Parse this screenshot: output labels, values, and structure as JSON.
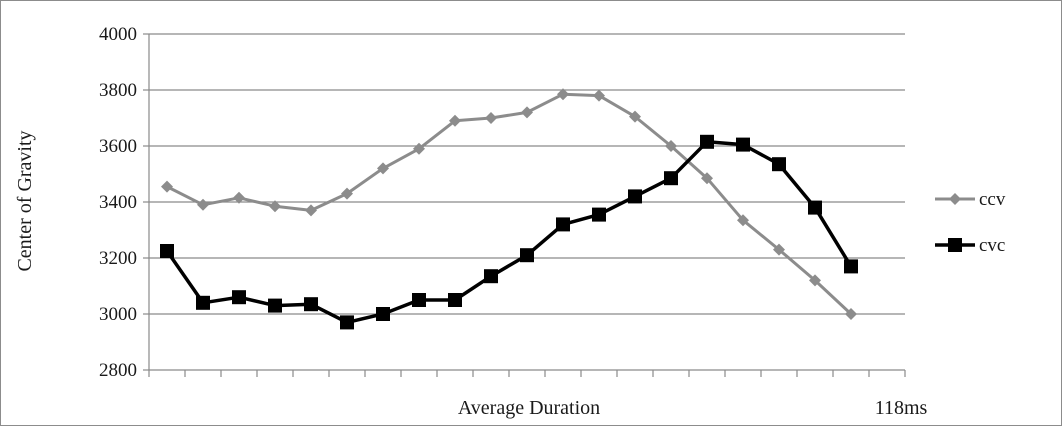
{
  "chart_data": {
    "type": "line",
    "title": "",
    "xlabel": "Average Duration",
    "xlabel_end": "118ms",
    "ylabel": "Center of Gravity",
    "ylim": [
      2800,
      4000
    ],
    "yticks": [
      2800,
      3000,
      3200,
      3400,
      3600,
      3800,
      4000
    ],
    "grid": true,
    "legend_position": "right",
    "x": [
      1,
      2,
      3,
      4,
      5,
      6,
      7,
      8,
      9,
      10,
      11,
      12,
      13,
      14,
      15,
      16,
      17,
      18,
      19,
      20,
      21
    ],
    "series": [
      {
        "name": "ccv",
        "color": "#8c8c8c",
        "marker": "diamond",
        "values": [
          3455,
          3390,
          3415,
          3385,
          3370,
          3430,
          3520,
          3590,
          3690,
          3700,
          3720,
          3785,
          3780,
          3705,
          3600,
          3485,
          3335,
          3230,
          3120,
          3000,
          null
        ]
      },
      {
        "name": "cvc",
        "color": "#000000",
        "marker": "square",
        "values": [
          3225,
          3040,
          3060,
          3030,
          3035,
          2970,
          3000,
          3050,
          3050,
          3135,
          3210,
          3320,
          3355,
          3420,
          3485,
          3615,
          3605,
          3535,
          3380,
          3170,
          null
        ]
      }
    ]
  }
}
